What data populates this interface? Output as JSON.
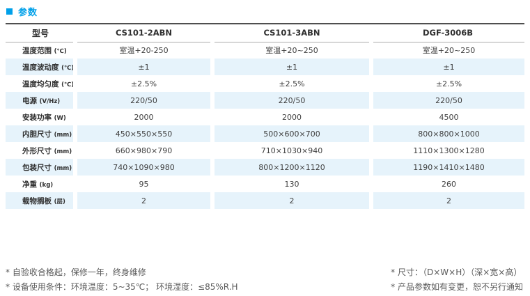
{
  "page": {
    "title": "参数",
    "accent_color": "#00a0e9",
    "stripe_color": "#e6f3fb"
  },
  "table": {
    "header": {
      "model_label": "型号",
      "models": [
        "CS101-2ABN",
        "CS101-3ABN",
        "DGF-3006B"
      ]
    },
    "rows": [
      {
        "label": "温度范围",
        "unit": "(℃)",
        "values": [
          "室温+20-250",
          "室温+20~250",
          "室温+20~250"
        ]
      },
      {
        "label": "温度波动度",
        "unit": "(℃)",
        "values": [
          "±1",
          "±1",
          "±1"
        ]
      },
      {
        "label": "温度均匀度",
        "unit": "(℃)",
        "values": [
          "±2.5%",
          "±2.5%",
          "±2.5%"
        ]
      },
      {
        "label": "电源",
        "unit": "(V/Hz)",
        "values": [
          "220/50",
          "220/50",
          "220/50"
        ]
      },
      {
        "label": "安装功率",
        "unit": "(W)",
        "values": [
          "2000",
          "2000",
          "4500"
        ]
      },
      {
        "label": "内胆尺寸",
        "unit": "(mm)",
        "values": [
          "450×550×550",
          "500×600×700",
          "800×800×1000"
        ]
      },
      {
        "label": "外形尺寸",
        "unit": "(mm)",
        "values": [
          "660×980×790",
          "710×1030×940",
          "1110×1300×1280"
        ]
      },
      {
        "label": "包装尺寸",
        "unit": "(mm)",
        "values": [
          "740×1090×980",
          "800×1200×1120",
          "1190×1410×1480"
        ]
      },
      {
        "label": "净重",
        "unit": "(kg)",
        "values": [
          "95",
          "130",
          "260"
        ]
      },
      {
        "label": "载物搁板",
        "unit": "(层)",
        "values": [
          "2",
          "2",
          "2"
        ]
      }
    ]
  },
  "footnotes": {
    "left": [
      "* 自验收合格起，保修一年，终身维修",
      "* 设备使用条件：环境温度：5~35℃； 环境湿度：≤85%R.H"
    ],
    "right": [
      "* 尺寸：（D×W×H）（深×宽×高）",
      "* 产品参数如有变更，恕不另行通知"
    ]
  }
}
